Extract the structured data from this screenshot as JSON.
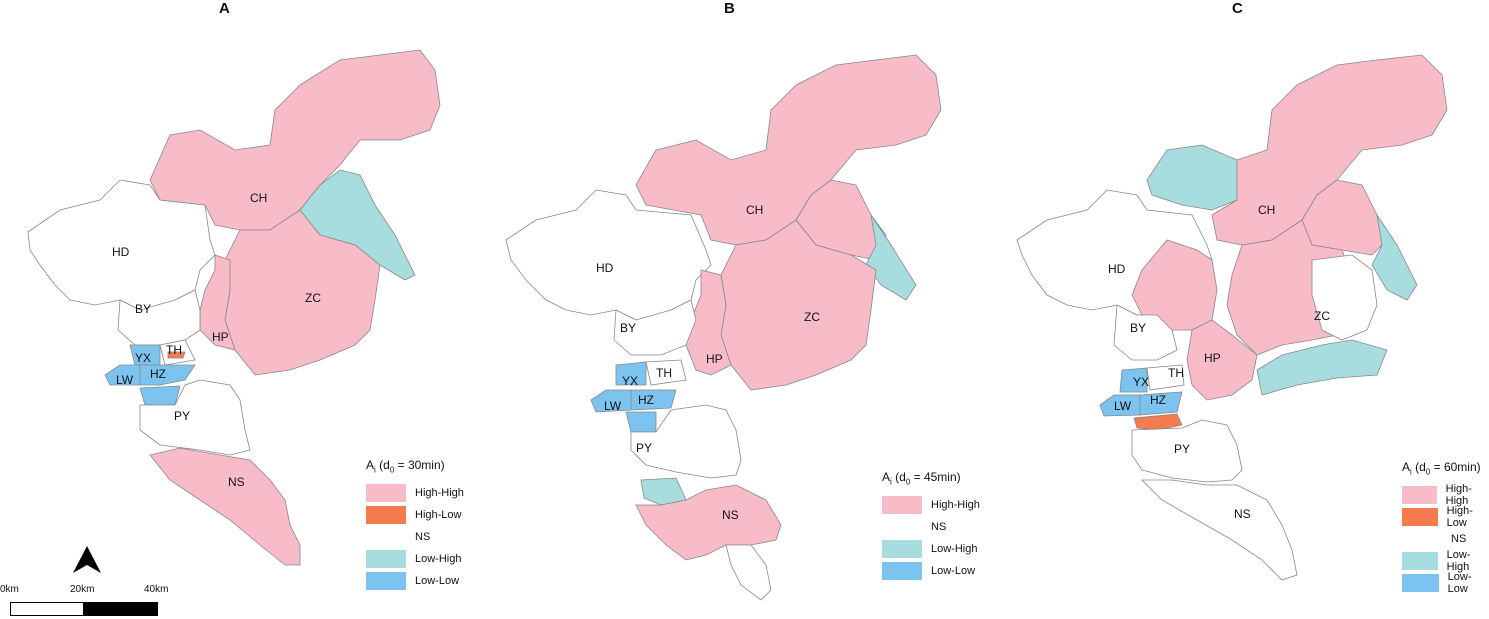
{
  "panels": [
    {
      "label": "A",
      "legend_title_main": "A",
      "legend_title_sub_i": "i",
      "legend_title_mid": " (d",
      "legend_title_sub_0": "0",
      "legend_title_end": " = 30min)",
      "legend": [
        {
          "label": "High-High",
          "color": "#f8bcc8"
        },
        {
          "label": "High-Low",
          "color": "#f47c4e"
        },
        {
          "label": "NS",
          "color": "#ffffff"
        },
        {
          "label": "Low-High",
          "color": "#a8dde0"
        },
        {
          "label": "Low-Low",
          "color": "#7cc4ef"
        }
      ],
      "districts": {
        "CH": "CH",
        "HD": "HD",
        "ZC": "ZC",
        "BY": "BY",
        "HP": "HP",
        "YX": "YX",
        "TH": "TH",
        "LW": "LW",
        "HZ": "HZ",
        "PY": "PY",
        "NS": "NS"
      }
    },
    {
      "label": "B",
      "legend_title_main": "A",
      "legend_title_sub_i": "i",
      "legend_title_mid": " (d",
      "legend_title_sub_0": "0",
      "legend_title_end": " = 45min)",
      "legend": [
        {
          "label": "High-High",
          "color": "#f8bcc8"
        },
        {
          "label": "NS",
          "color": "#ffffff"
        },
        {
          "label": "Low-High",
          "color": "#a8dde0"
        },
        {
          "label": "Low-Low",
          "color": "#7cc4ef"
        }
      ],
      "districts": {
        "CH": "CH",
        "HD": "HD",
        "ZC": "ZC",
        "BY": "BY",
        "HP": "HP",
        "YX": "YX",
        "TH": "TH",
        "LW": "LW",
        "HZ": "HZ",
        "PY": "PY",
        "NS": "NS"
      }
    },
    {
      "label": "C",
      "legend_title_main": "A",
      "legend_title_sub_i": "i",
      "legend_title_mid": " (d",
      "legend_title_sub_0": "0",
      "legend_title_end": " = 60min)",
      "legend": [
        {
          "label": "High-High",
          "color": "#f8bcc8"
        },
        {
          "label": "High-Low",
          "color": "#f47c4e"
        },
        {
          "label": "NS",
          "color": "#ffffff"
        },
        {
          "label": "Low-High",
          "color": "#a8dde0"
        },
        {
          "label": "Low-Low",
          "color": "#7cc4ef"
        }
      ],
      "districts": {
        "CH": "CH",
        "HD": "HD",
        "ZC": "ZC",
        "BY": "BY",
        "HP": "HP",
        "YX": "YX",
        "TH": "TH",
        "LW": "LW",
        "HZ": "HZ",
        "PY": "PY",
        "NS": "NS"
      }
    }
  ],
  "scalebar": {
    "labels": [
      "0km",
      "20km",
      "40km"
    ]
  },
  "north_arrow_icon": "north-arrow-icon"
}
